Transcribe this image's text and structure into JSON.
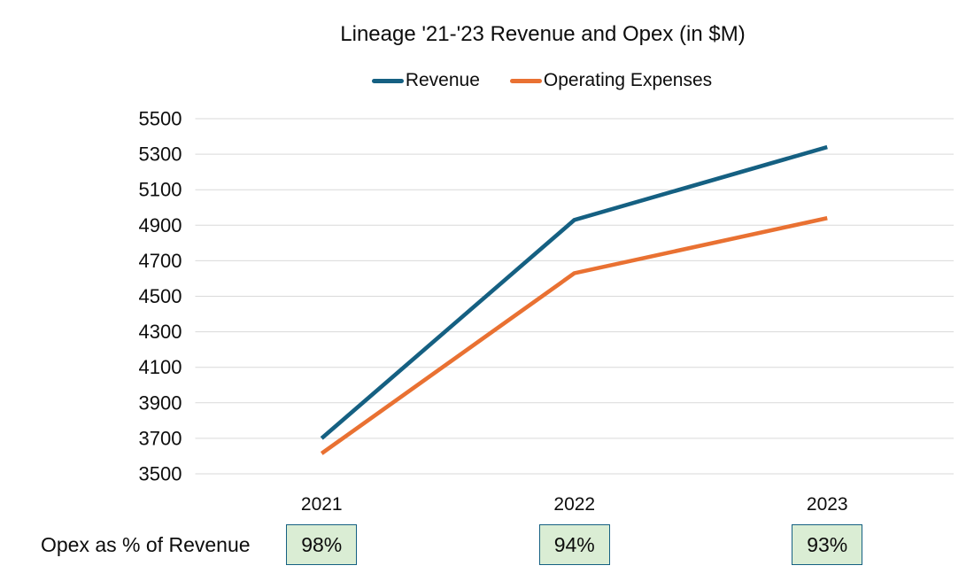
{
  "chart_data": {
    "type": "line",
    "title": "Lineage '21-'23 Revenue and Opex (in $M)",
    "categories": [
      "2021",
      "2022",
      "2023"
    ],
    "series": [
      {
        "name": "Revenue",
        "color": "#156082",
        "values": [
          3700,
          4930,
          5340
        ]
      },
      {
        "name": "Operating Expenses",
        "color": "#E97132",
        "values": [
          3615,
          4630,
          4940
        ]
      }
    ],
    "ylim": [
      3500,
      5500
    ],
    "ytick_step": 200,
    "yticks": [
      3500,
      3700,
      3900,
      4100,
      4300,
      4500,
      4700,
      4900,
      5100,
      5300,
      5500
    ],
    "xlabel": "",
    "ylabel": "",
    "grid": "horizontal",
    "gridline_color": "#D9D9D9",
    "text_color": "#0d0d0d",
    "legend_position": "top",
    "annotation_row": {
      "label": "Opex as % of Revenue",
      "values": [
        "98%",
        "94%",
        "93%"
      ],
      "box_fill": "#daedd4",
      "box_border": "#156082"
    }
  }
}
